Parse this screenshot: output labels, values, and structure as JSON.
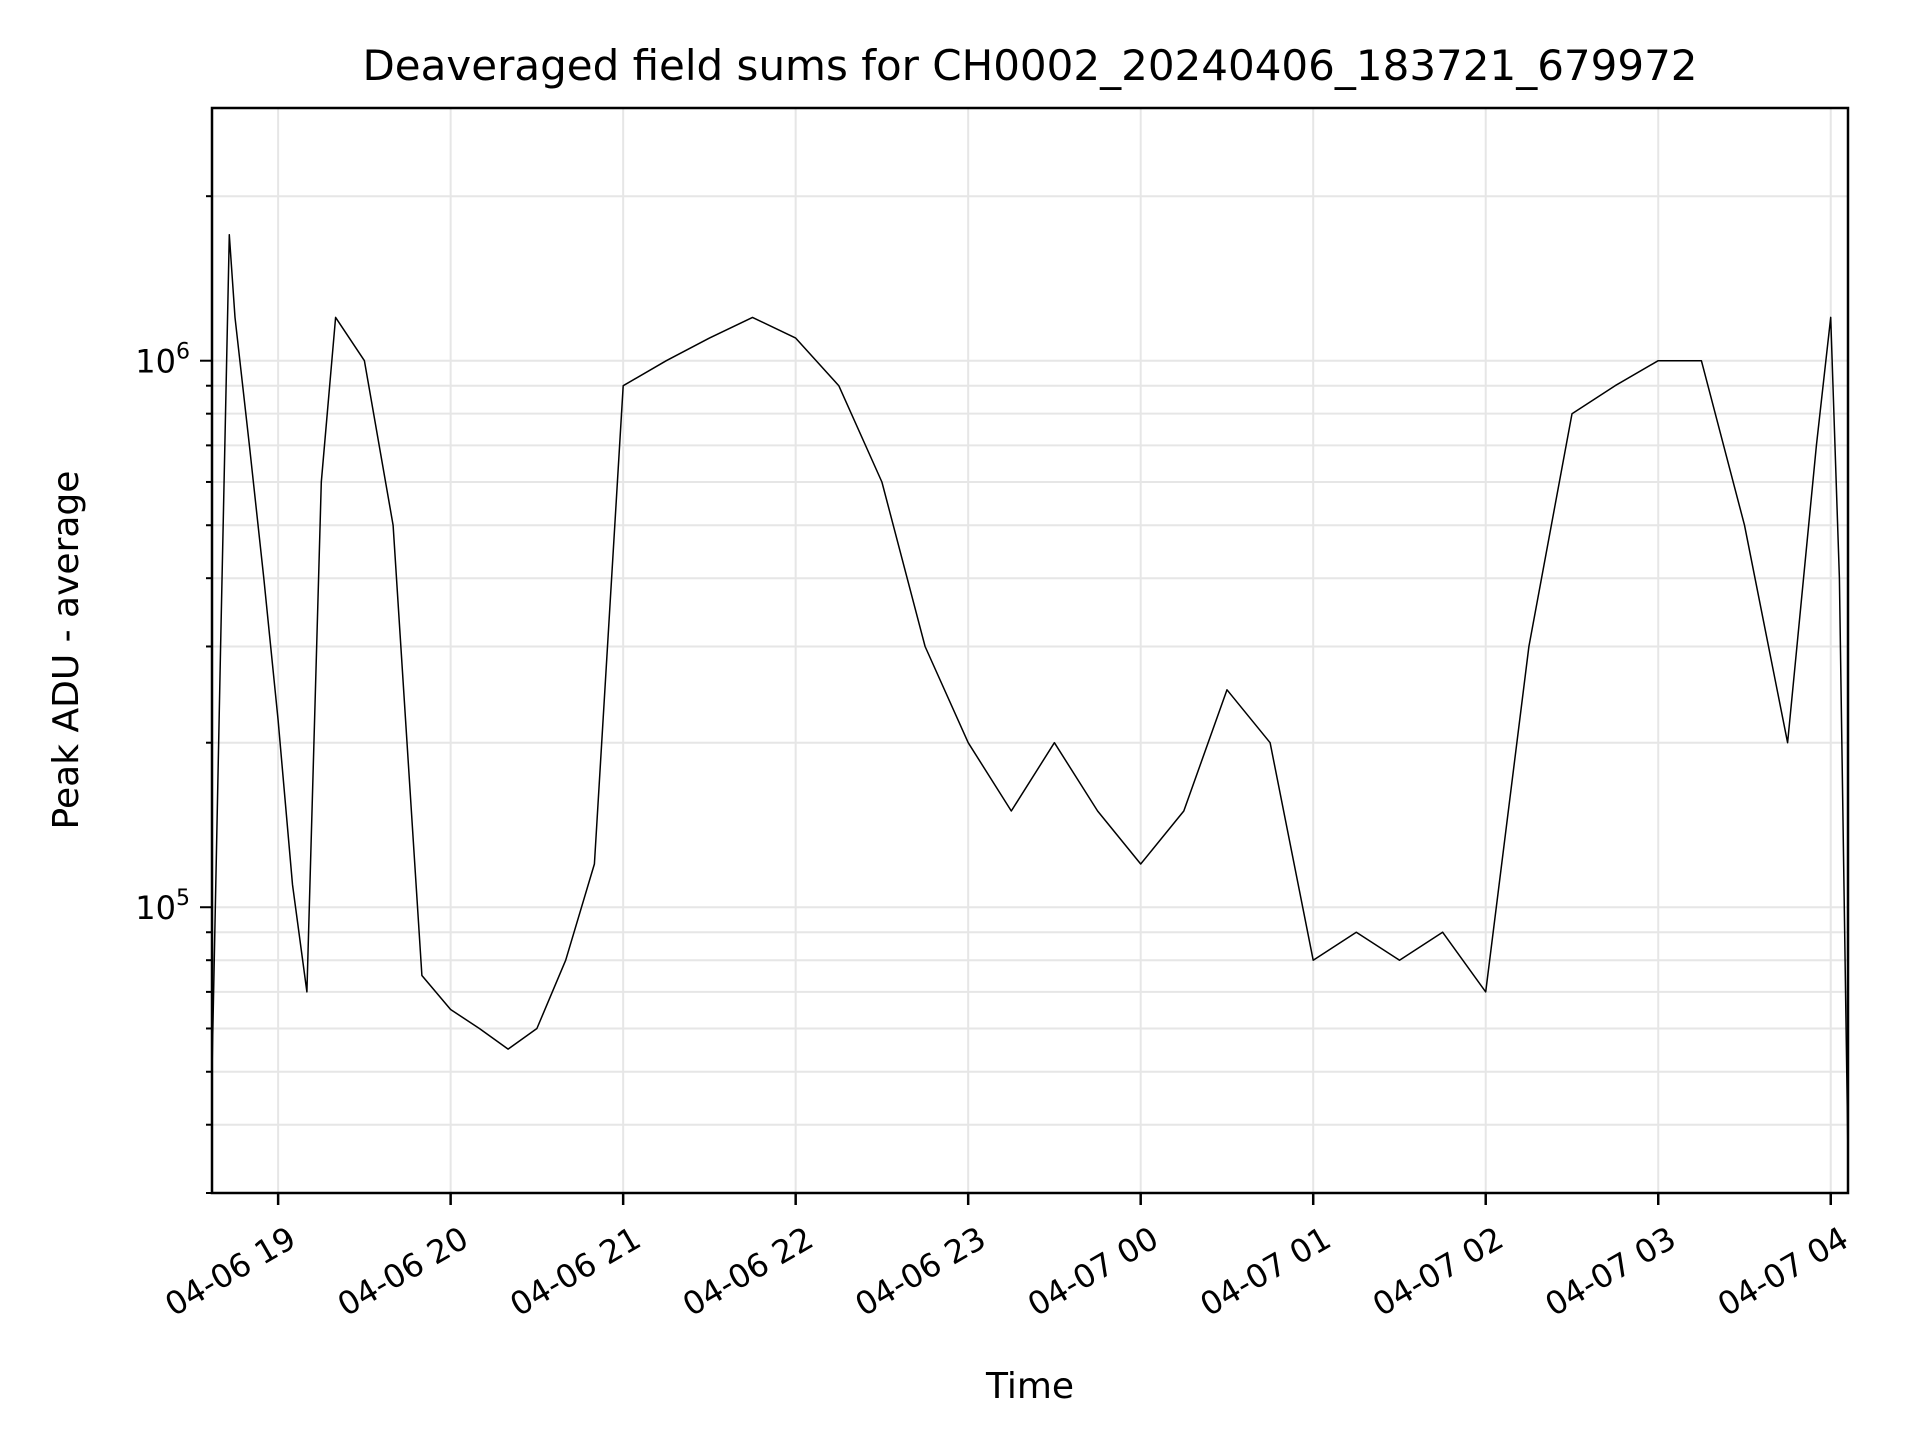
{
  "chart_data": {
    "type": "line",
    "title": "Deaveraged field sums for CH0002_20240406_183721_679972",
    "xlabel": "Time",
    "ylabel": "Peak ADU - average",
    "yscale": "log",
    "xlim": [
      "2024-04-06 18:37",
      "2024-04-07 04:06"
    ],
    "ylim": [
      30000,
      2900000
    ],
    "grid": true,
    "x_ticks": [
      {
        "t": "2024-04-06 19:00",
        "label": "04-06 19"
      },
      {
        "t": "2024-04-06 20:00",
        "label": "04-06 20"
      },
      {
        "t": "2024-04-06 21:00",
        "label": "04-06 21"
      },
      {
        "t": "2024-04-06 22:00",
        "label": "04-06 22"
      },
      {
        "t": "2024-04-06 23:00",
        "label": "04-06 23"
      },
      {
        "t": "2024-04-07 00:00",
        "label": "04-07 00"
      },
      {
        "t": "2024-04-07 01:00",
        "label": "04-07 01"
      },
      {
        "t": "2024-04-07 02:00",
        "label": "04-07 02"
      },
      {
        "t": "2024-04-07 03:00",
        "label": "04-07 03"
      },
      {
        "t": "2024-04-07 04:00",
        "label": "04-07 04"
      }
    ],
    "y_ticks": [
      {
        "value": 100000,
        "label": "10",
        "exp": "5"
      },
      {
        "value": 1000000,
        "label": "10",
        "exp": "6"
      }
    ],
    "series": [
      {
        "color": "#000000",
        "x": [
          "2024-04-06 18:37",
          "2024-04-06 18:40",
          "2024-04-06 18:43",
          "2024-04-06 18:45",
          "2024-04-06 18:50",
          "2024-04-06 18:55",
          "2024-04-06 19:00",
          "2024-04-06 19:05",
          "2024-04-06 19:10",
          "2024-04-06 19:15",
          "2024-04-06 19:20",
          "2024-04-06 19:30",
          "2024-04-06 19:40",
          "2024-04-06 19:50",
          "2024-04-06 20:00",
          "2024-04-06 20:10",
          "2024-04-06 20:20",
          "2024-04-06 20:30",
          "2024-04-06 20:40",
          "2024-04-06 20:50",
          "2024-04-06 21:00",
          "2024-04-06 21:15",
          "2024-04-06 21:30",
          "2024-04-06 21:45",
          "2024-04-06 22:00",
          "2024-04-06 22:15",
          "2024-04-06 22:30",
          "2024-04-06 22:45",
          "2024-04-06 23:00",
          "2024-04-06 23:15",
          "2024-04-06 23:30",
          "2024-04-06 23:45",
          "2024-04-07 00:00",
          "2024-04-07 00:15",
          "2024-04-07 00:30",
          "2024-04-07 00:45",
          "2024-04-07 01:00",
          "2024-04-07 01:15",
          "2024-04-07 01:30",
          "2024-04-07 01:45",
          "2024-04-07 02:00",
          "2024-04-07 02:15",
          "2024-04-07 02:30",
          "2024-04-07 02:45",
          "2024-04-07 03:00",
          "2024-04-07 03:15",
          "2024-04-07 03:30",
          "2024-04-07 03:45",
          "2024-04-07 03:55",
          "2024-04-07 04:00",
          "2024-04-07 04:03",
          "2024-04-07 04:06"
        ],
        "y": [
          50000,
          300000,
          1700000,
          1200000,
          700000,
          400000,
          220000,
          110000,
          70000,
          600000,
          1200000,
          1000000,
          500000,
          75000,
          65000,
          60000,
          55000,
          60000,
          80000,
          120000,
          900000,
          1000000,
          1100000,
          1200000,
          1100000,
          900000,
          600000,
          300000,
          200000,
          150000,
          200000,
          150000,
          120000,
          150000,
          250000,
          200000,
          80000,
          90000,
          80000,
          90000,
          70000,
          300000,
          800000,
          900000,
          1000000,
          1000000,
          500000,
          200000,
          700000,
          1200000,
          400000,
          35000
        ]
      }
    ]
  }
}
